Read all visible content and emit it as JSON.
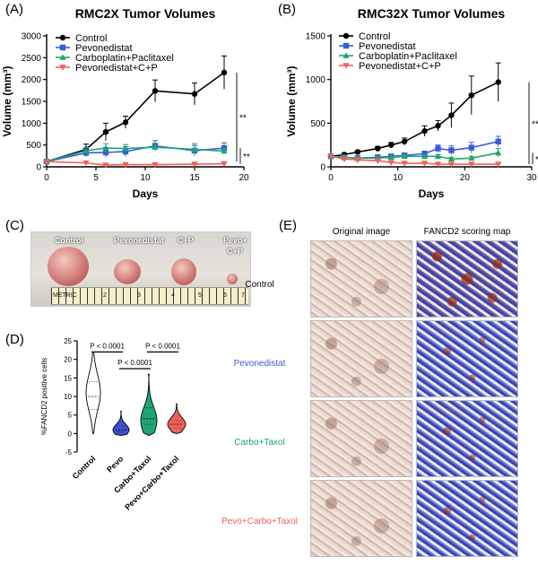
{
  "panel_labels": {
    "a": "(A)",
    "b": "(B)",
    "c": "(C)",
    "d": "(D)",
    "e": "(E)"
  },
  "colors": {
    "control": "#000000",
    "pevonedistat": "#3b5bdb",
    "carbo": "#1ea672",
    "combo": "#f0605b",
    "violin_pevo": "#3f51d6",
    "violin_carbo": "#1ea672",
    "violin_combo": "#f0605b"
  },
  "chart_data": [
    {
      "type": "line",
      "title": "RMC2X Tumor Volumes",
      "xlabel": "Days",
      "ylabel": "Volume (mm³)",
      "xlim": [
        0,
        20
      ],
      "ylim": [
        0,
        3000
      ],
      "xticks": [
        "0",
        "5",
        "10",
        "15",
        "20"
      ],
      "yticks": [
        "0",
        "500",
        "1000",
        "1500",
        "2000",
        "2500",
        "3000"
      ],
      "x": [
        0,
        4,
        6,
        8,
        11,
        15,
        18
      ],
      "series": [
        {
          "name": "Control",
          "color": "#000000",
          "marker": "circle",
          "values": [
            120,
            400,
            800,
            1020,
            1740,
            1670,
            2160
          ],
          "err": [
            30,
            120,
            200,
            140,
            250,
            250,
            380
          ]
        },
        {
          "name": "Pevonedistat",
          "color": "#3b5bdb",
          "marker": "square",
          "values": [
            120,
            320,
            330,
            350,
            480,
            370,
            430
          ],
          "err": [
            30,
            90,
            110,
            110,
            120,
            120,
            120
          ]
        },
        {
          "name": "Carboplatin+Paclitaxel",
          "color": "#1ea672",
          "marker": "triangle-up",
          "values": [
            120,
            370,
            430,
            420,
            450,
            400,
            360
          ],
          "err": [
            30,
            70,
            100,
            90,
            90,
            130,
            60
          ]
        },
        {
          "name": "Pevonedistat+C+P",
          "color": "#f0605b",
          "marker": "triangle-down",
          "values": [
            120,
            90,
            40,
            50,
            50,
            60,
            70
          ],
          "err": [
            20,
            40,
            20,
            20,
            20,
            20,
            20
          ]
        }
      ],
      "significance": [
        {
          "label": "**",
          "range": [
            120,
            2160
          ]
        },
        {
          "label": "**",
          "range": [
            70,
            430
          ]
        }
      ]
    },
    {
      "type": "line",
      "title": "RMC32X Tumor Volumes",
      "xlabel": "Days",
      "ylabel": "Volume (mm³)",
      "xlim": [
        0,
        30
      ],
      "ylim": [
        0,
        1500
      ],
      "xticks": [
        "0",
        "10",
        "20",
        "30"
      ],
      "yticks": [
        "0",
        "500",
        "1000",
        "1500"
      ],
      "x": [
        0,
        2,
        4,
        7,
        9,
        11,
        14,
        16,
        18,
        21,
        25
      ],
      "series": [
        {
          "name": "Control",
          "color": "#000000",
          "marker": "circle",
          "values": [
            120,
            140,
            170,
            210,
            250,
            290,
            410,
            470,
            590,
            820,
            970
          ],
          "err": [
            20,
            20,
            20,
            25,
            30,
            40,
            60,
            60,
            140,
            220,
            220
          ]
        },
        {
          "name": "Pevonedistat",
          "color": "#3b5bdb",
          "marker": "square",
          "values": [
            120,
            110,
            100,
            110,
            120,
            130,
            150,
            210,
            190,
            220,
            290
          ],
          "err": [
            20,
            20,
            20,
            20,
            20,
            30,
            30,
            40,
            50,
            60,
            60
          ]
        },
        {
          "name": "Carboplatin+Paclitaxel",
          "color": "#1ea672",
          "marker": "triangle-up",
          "values": [
            120,
            110,
            100,
            100,
            110,
            120,
            120,
            120,
            90,
            100,
            160
          ],
          "err": [
            20,
            20,
            20,
            20,
            20,
            20,
            20,
            20,
            20,
            20,
            50
          ]
        },
        {
          "name": "Pevonedistat+C+P",
          "color": "#f0605b",
          "marker": "triangle-down",
          "values": [
            120,
            90,
            80,
            70,
            50,
            40,
            40,
            30,
            30,
            30,
            30
          ],
          "err": [
            20,
            20,
            15,
            15,
            10,
            10,
            10,
            10,
            10,
            10,
            10
          ]
        }
      ],
      "significance": [
        {
          "label": "**",
          "range": [
            30,
            970
          ]
        },
        {
          "label": "*",
          "range": [
            30,
            160
          ]
        }
      ]
    },
    {
      "type": "violin",
      "ylabel": "%FANCD2 positive cells",
      "ylim": [
        -5,
        25
      ],
      "yticks": [
        "-5",
        "0",
        "5",
        "10",
        "15",
        "20",
        "25"
      ],
      "categories": [
        "Control",
        "Pevo",
        "Carbo+Taxol",
        "Pevo+Carbo+Taxol"
      ],
      "series": [
        {
          "name": "Control",
          "color": "#ffffff",
          "min": 0,
          "max": 22,
          "q1": 6.5,
          "median": 10,
          "q3": 14,
          "mode": 11,
          "width": 8
        },
        {
          "name": "Pevo",
          "color": "#3f51d6",
          "min": -0.5,
          "max": 6,
          "q1": 0.5,
          "median": 1,
          "q3": 2,
          "mode": 1,
          "width": 9
        },
        {
          "name": "Carbo+Taxol",
          "color": "#1ea672",
          "min": -0.5,
          "max": 16,
          "q1": 2.5,
          "median": 4,
          "q3": 7,
          "mode": 3.5,
          "width": 9
        },
        {
          "name": "Pevo+Carbo+Taxol",
          "color": "#f0605b",
          "min": 0,
          "max": 8,
          "q1": 1.5,
          "median": 2.5,
          "q3": 3.5,
          "mode": 2.5,
          "width": 10
        }
      ],
      "comparisons": [
        {
          "groups": [
            0,
            1
          ],
          "label": "P < 0.0001",
          "level": 22
        },
        {
          "groups": [
            1,
            2
          ],
          "label": "P < 0.0001",
          "level": 17.5
        },
        {
          "groups": [
            2,
            3
          ],
          "label": "P < 0.0001",
          "level": 22
        }
      ]
    }
  ],
  "photo": {
    "labels": [
      "Control",
      "Pevonedistat",
      "C+P",
      "Pevo+",
      "C+P"
    ],
    "ruler_label": "METRIC",
    "ruler_numbers": [
      "2",
      "3",
      "4",
      "5",
      "6",
      "7"
    ]
  },
  "histology": {
    "col_headers": [
      "Original image",
      "FANCD2 scoring map"
    ],
    "row_labels": [
      {
        "text": "Control",
        "color": "#000000"
      },
      {
        "text": "Pevonedistat",
        "color": "#3b5bdb"
      },
      {
        "text": "Carbo+Taxol",
        "color": "#1ea672"
      },
      {
        "text": "Pevo+Carbo+Taxol",
        "color": "#f0605b"
      }
    ]
  }
}
